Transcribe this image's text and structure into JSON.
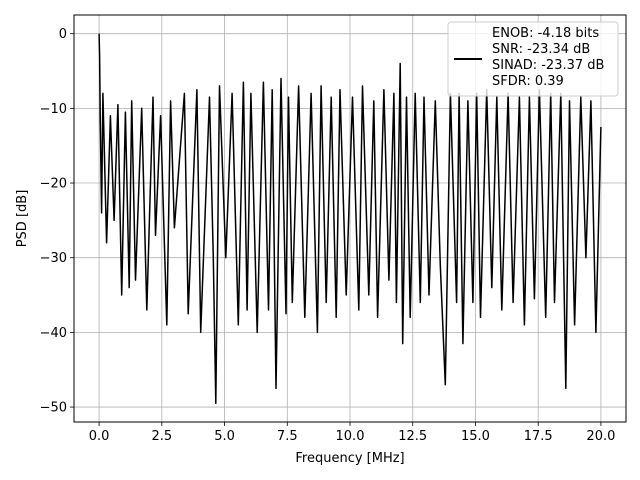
{
  "chart_data": {
    "type": "line",
    "xlabel": "Frequency [MHz]",
    "ylabel": "PSD [dB]",
    "xlim": [
      -1.0,
      21.0
    ],
    "ylim": [
      -52.0,
      2.5
    ],
    "xticks": [
      0.0,
      2.5,
      5.0,
      7.5,
      10.0,
      12.5,
      15.0,
      17.5,
      20.0
    ],
    "xtick_labels": [
      "0.0",
      "2.5",
      "5.0",
      "7.5",
      "10.0",
      "12.5",
      "15.0",
      "17.5",
      "20.0"
    ],
    "yticks": [
      0,
      -10,
      -20,
      -30,
      -40,
      -50
    ],
    "ytick_labels": [
      "0",
      "−10",
      "−20",
      "−30",
      "−40",
      "−50"
    ],
    "grid": true,
    "legend_position": "top-right",
    "legend_lines": [
      "ENOB: -4.18 bits",
      "SNR: -23.34 dB",
      "SINAD: -23.37 dB",
      "SFDR: 0.39"
    ],
    "series": [
      {
        "color": "#000000",
        "description_noise_band": [
          -31,
          -8
        ],
        "x": [
          0.0,
          0.02,
          0.05,
          0.1,
          0.15,
          0.3,
          0.45,
          0.6,
          0.75,
          0.9,
          1.05,
          1.2,
          1.3,
          1.45,
          1.7,
          1.9,
          2.15,
          2.25,
          2.45,
          2.7,
          2.85,
          3.0,
          3.4,
          3.55,
          3.9,
          4.05,
          4.4,
          4.55,
          4.65,
          4.8,
          5.05,
          5.3,
          5.55,
          5.75,
          5.9,
          6.05,
          6.3,
          6.55,
          6.75,
          6.9,
          7.05,
          7.25,
          7.45,
          7.55,
          7.7,
          7.95,
          8.2,
          8.45,
          8.7,
          8.85,
          9.05,
          9.25,
          9.45,
          9.6,
          9.85,
          10.1,
          10.35,
          10.5,
          10.75,
          10.95,
          11.1,
          11.35,
          11.55,
          11.75,
          11.85,
          12.0,
          12.1,
          12.25,
          12.4,
          12.6,
          12.8,
          12.95,
          13.15,
          13.4,
          13.6,
          13.8,
          14.0,
          14.25,
          14.35,
          14.5,
          14.7,
          14.9,
          15.05,
          15.2,
          15.45,
          15.65,
          15.85,
          16.05,
          16.3,
          16.5,
          16.75,
          16.95,
          17.15,
          17.35,
          17.55,
          17.8,
          18.0,
          18.15,
          18.4,
          18.6,
          18.75,
          18.95,
          19.2,
          19.4,
          19.6,
          19.8,
          20.0
        ],
        "y": [
          0.0,
          -3.0,
          -12.0,
          -24.0,
          -8.0,
          -28.0,
          -11.0,
          -25.0,
          -9.5,
          -35.0,
          -10.5,
          -34.0,
          -9.0,
          -33.0,
          -10.0,
          -37.0,
          -8.5,
          -27.0,
          -11.0,
          -39.0,
          -9.0,
          -26.0,
          -8.0,
          -37.5,
          -7.5,
          -40.0,
          -8.5,
          -30.0,
          -49.5,
          -7.0,
          -30.0,
          -8.0,
          -39.0,
          -6.5,
          -37.0,
          -8.0,
          -40.0,
          -6.5,
          -37.0,
          -7.5,
          -47.5,
          -6.0,
          -37.5,
          -8.5,
          -36.0,
          -7.0,
          -38.0,
          -8.0,
          -40.0,
          -7.0,
          -36.0,
          -8.5,
          -38.0,
          -7.5,
          -35.0,
          -8.5,
          -37.0,
          -7.0,
          -35.0,
          -9.0,
          -38.0,
          -7.5,
          -33.0,
          -8.0,
          -36.0,
          -4.0,
          -41.5,
          -8.5,
          -38.0,
          -8.0,
          -36.0,
          -8.5,
          -35.0,
          -9.0,
          -31.0,
          -47.0,
          -8.0,
          -36.0,
          -8.0,
          -41.5,
          -9.0,
          -36.0,
          -8.0,
          -38.0,
          -7.5,
          -34.0,
          -8.5,
          -37.0,
          -8.0,
          -36.0,
          -8.5,
          -39.0,
          -8.5,
          -35.5,
          -7.5,
          -38.0,
          -8.0,
          -36.0,
          -8.0,
          -47.5,
          -9.0,
          -39.0,
          -8.5,
          -30.0,
          -9.0,
          -40.0,
          -12.5
        ]
      }
    ]
  }
}
